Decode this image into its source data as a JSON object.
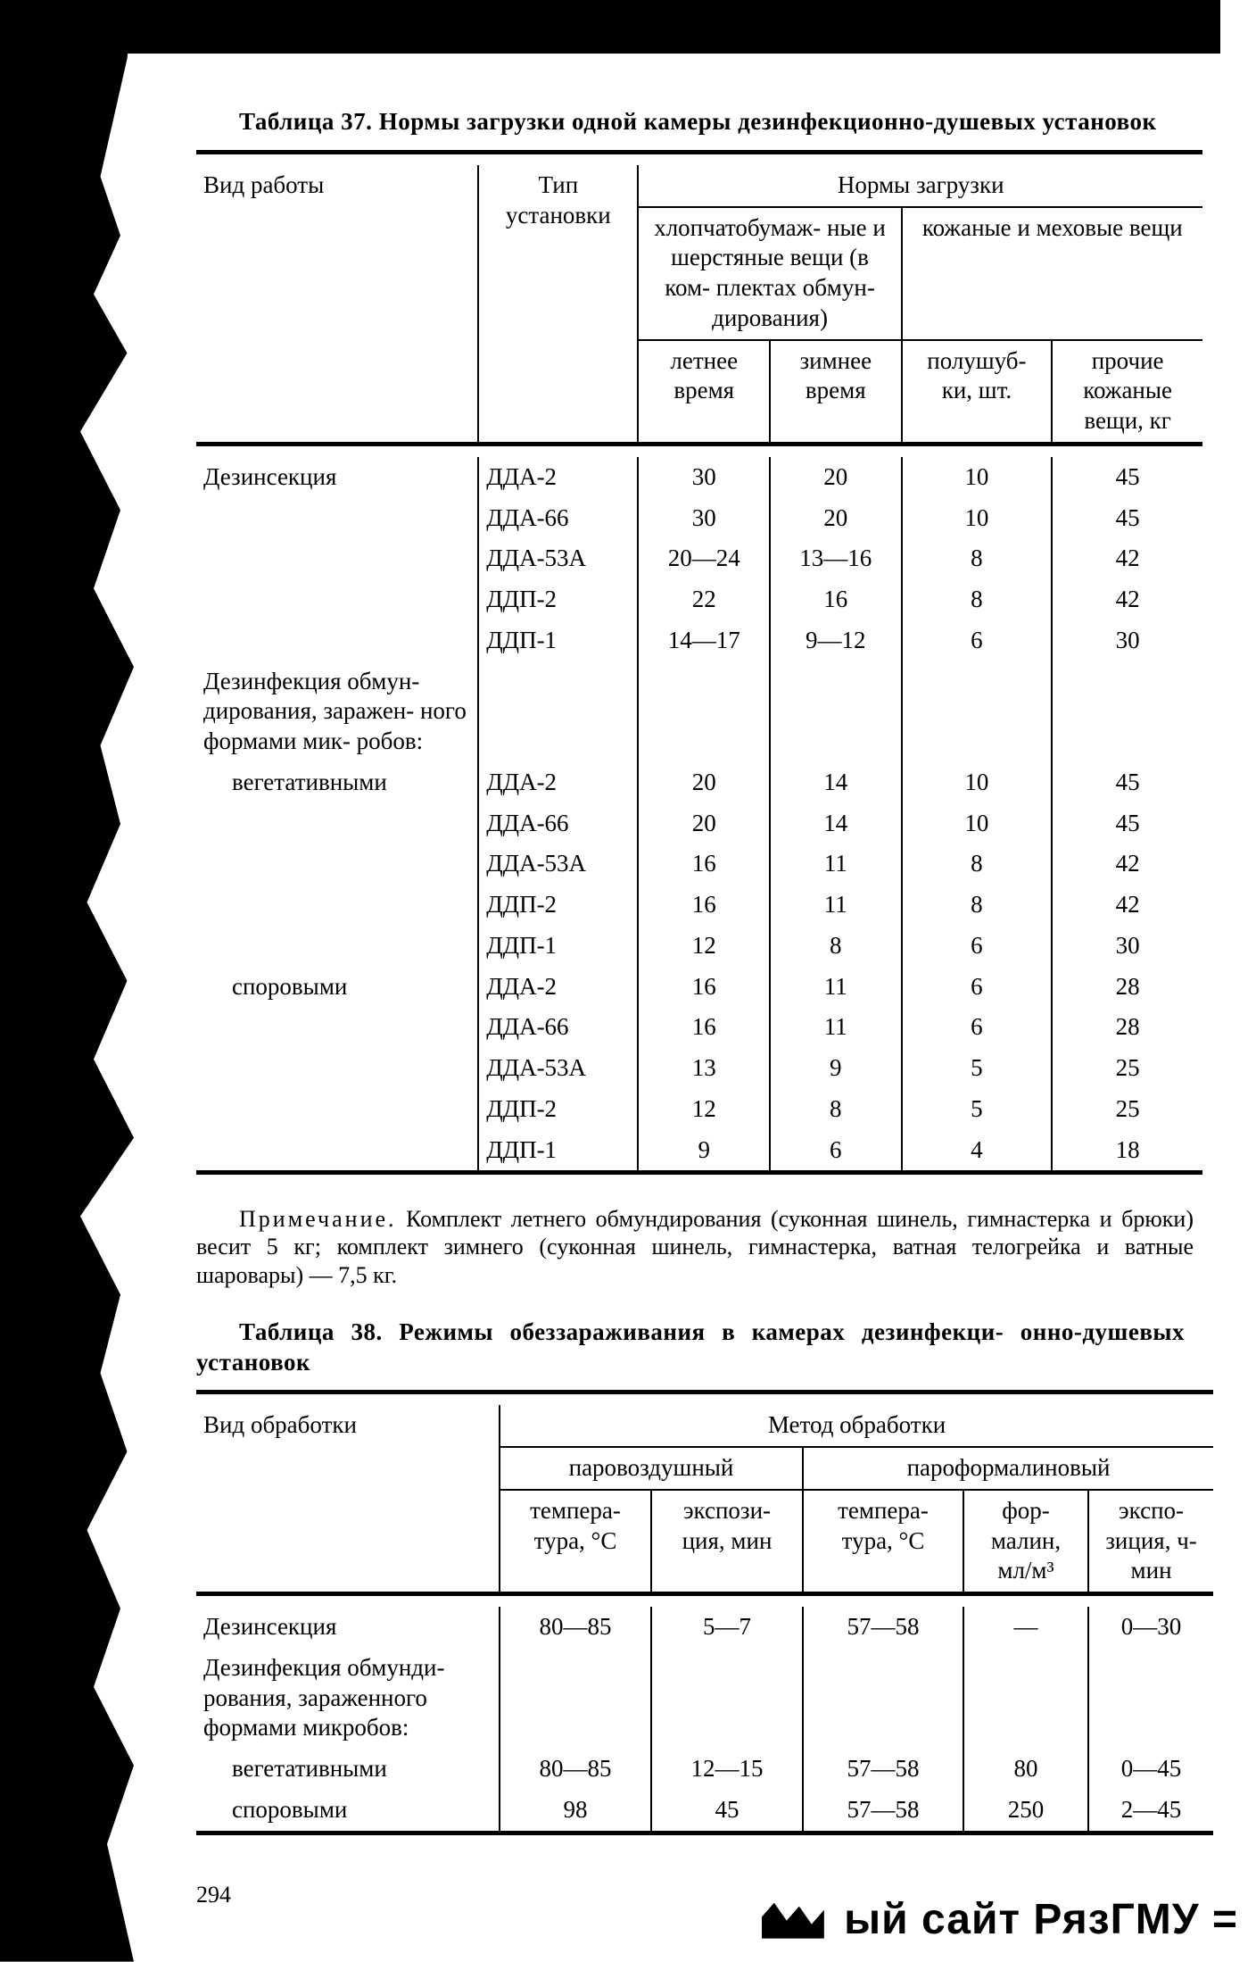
{
  "table37": {
    "caption_prefix": "Таблица 37.",
    "caption_rest": " Нормы загрузки одной камеры дезинфекционно-душевых установок",
    "head": {
      "work_kind": "Вид работы",
      "installation_type": "Тип установки",
      "norms": "Нормы загрузки",
      "cotton_wool": "хлопчатобумаж-\nные и шерстяные вещи (в ком-\nплектах обмун-\nдирования)",
      "leather_fur": "кожаные и меховые вещи",
      "summer": "летнее время",
      "winter": "зимнее время",
      "sheepskin": "полушуб-\nки, шт.",
      "other_leather": "прочие кожаные вещи, кг"
    },
    "group1_label": "Дезинсекция",
    "group1_rows": [
      {
        "inst": "ДДА-2",
        "a": "30",
        "b": "20",
        "c": "10",
        "d": "45"
      },
      {
        "inst": "ДДА-66",
        "a": "30",
        "b": "20",
        "c": "10",
        "d": "45"
      },
      {
        "inst": "ДДА-53А",
        "a": "20—24",
        "b": "13—16",
        "c": "8",
        "d": "42"
      },
      {
        "inst": "ДДП-2",
        "a": "22",
        "b": "16",
        "c": "8",
        "d": "42"
      },
      {
        "inst": "ДДП-1",
        "a": "14—17",
        "b": "9—12",
        "c": "6",
        "d": "30"
      }
    ],
    "group2_label": "Дезинфекция обмун-\nдирования, заражен-\nного формами мик-\nробов:",
    "sub_vegi_label": "вегетативными",
    "sub_vegi_rows": [
      {
        "inst": "ДДА-2",
        "a": "20",
        "b": "14",
        "c": "10",
        "d": "45"
      },
      {
        "inst": "ДДА-66",
        "a": "20",
        "b": "14",
        "c": "10",
        "d": "45"
      },
      {
        "inst": "ДДА-53А",
        "a": "16",
        "b": "11",
        "c": "8",
        "d": "42"
      },
      {
        "inst": "ДДП-2",
        "a": "16",
        "b": "11",
        "c": "8",
        "d": "42"
      },
      {
        "inst": "ДДП-1",
        "a": "12",
        "b": "8",
        "c": "6",
        "d": "30"
      }
    ],
    "sub_spore_label": "споровыми",
    "sub_spore_rows": [
      {
        "inst": "ДДА-2",
        "a": "16",
        "b": "11",
        "c": "6",
        "d": "28"
      },
      {
        "inst": "ДДА-66",
        "a": "16",
        "b": "11",
        "c": "6",
        "d": "28"
      },
      {
        "inst": "ДДА-53А",
        "a": "13",
        "b": "9",
        "c": "5",
        "d": "25"
      },
      {
        "inst": "ДДП-2",
        "a": "12",
        "b": "8",
        "c": "5",
        "d": "25"
      },
      {
        "inst": "ДДП-1",
        "a": "9",
        "b": "6",
        "c": "4",
        "d": "18"
      }
    ],
    "note_prefix": "Примечание.",
    "note_rest": " Комплект летнего обмундирования (суконная шинель, гимнастерка и брюки) весит 5 кг; комплект зимнего (суконная шинель, гимнастерка, ватная телогрейка и ватные шаровары) — 7,5 кг."
  },
  "table38": {
    "caption_prefix": "Таблица 38.",
    "caption_rest": " Режимы обеззараживания в камерах дезинфекци-\nонно-душевых установок",
    "head": {
      "work_kind": "Вид обработки",
      "method": "Метод обработки",
      "steam_air": "паровоздушный",
      "paraform": "пароформалиновый",
      "temp_c": "темпера-\nтура, °C",
      "expo_min": "экспози-\nция, мин",
      "temp_c2": "темпера-\nтура, °C",
      "formalin": "фор-\nмалин, мл/м³",
      "expo_hmin": "экспо-\nзиция, ч-мин"
    },
    "row_desins": {
      "label": "Дезинсекция",
      "t1": "80—85",
      "e1": "5—7",
      "t2": "57—58",
      "f": "—",
      "e2": "0—30"
    },
    "group_label": "Дезинфекция обмунди-\nрования, зараженного формами микробов:",
    "row_vegi": {
      "label": "вегетативными",
      "t1": "80—85",
      "e1": "12—15",
      "t2": "57—58",
      "f": "80",
      "e2": "0—45"
    },
    "row_spore": {
      "label": "споровыми",
      "t1": "98",
      "e1": "45",
      "t2": "57—58",
      "f": "250",
      "e2": "2—45"
    }
  },
  "page_number": "294",
  "footer_site": "ый сайт РязГМУ"
}
